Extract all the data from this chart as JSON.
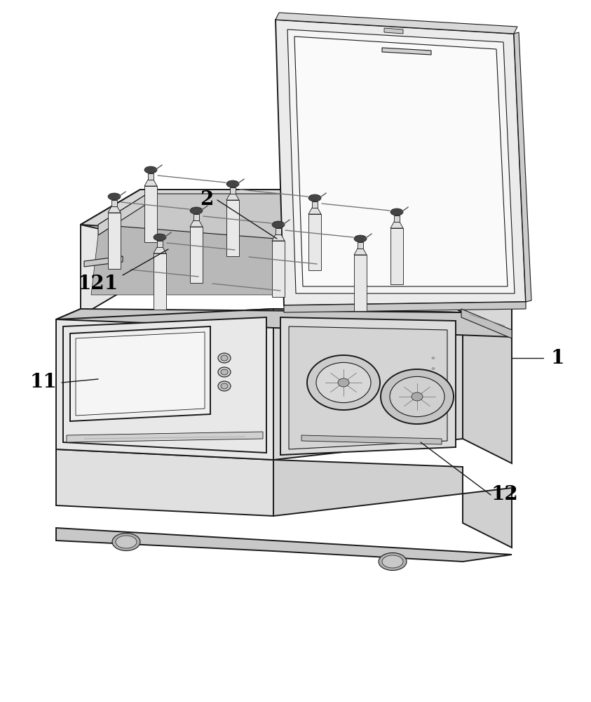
{
  "bg_color": "#ffffff",
  "lc": "#1a1a1a",
  "lw": 1.4,
  "tlw": 0.8,
  "face_light": "#f0f0f0",
  "face_mid": "#e0e0e0",
  "face_dark": "#d0d0d0",
  "face_darker": "#c0c0c0",
  "face_darkest": "#b0b0b0",
  "white": "#ffffff",
  "label_fontsize": 18,
  "leader_lw": 1.0
}
